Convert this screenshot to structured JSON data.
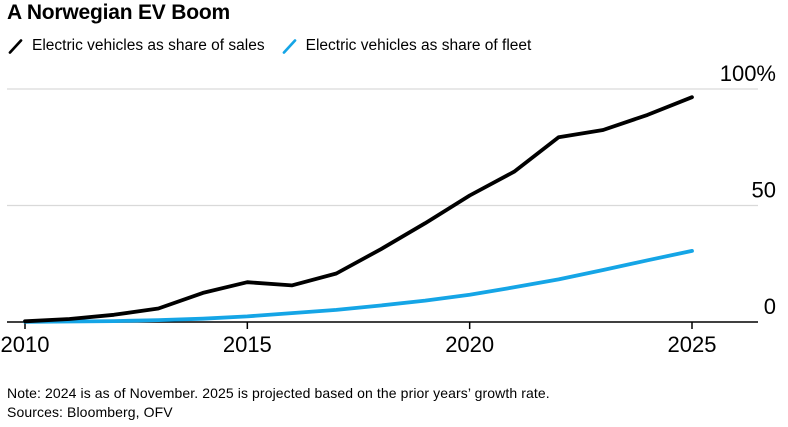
{
  "title": "A Norwegian EV Boom",
  "legend": [
    {
      "id": "sales",
      "label": "Electric vehicles as share of sales",
      "color": "#000000"
    },
    {
      "id": "fleet",
      "label": "Electric vehicles as share of fleet",
      "color": "#15a5e6"
    }
  ],
  "note": "Note: 2024 is as of November. 2025 is projected based on the prior years’ growth rate.",
  "sources": "Sources: Bloomberg, OFV",
  "colors": {
    "sales_line": "#000000",
    "fleet_line": "#15a5e6",
    "gridline": "#d9d9d9",
    "axis": "#000000",
    "background": "#ffffff"
  },
  "chart_data": {
    "type": "line",
    "title": "A Norwegian EV Boom",
    "x": [
      2010,
      2011,
      2012,
      2013,
      2014,
      2015,
      2016,
      2017,
      2018,
      2019,
      2020,
      2021,
      2022,
      2023,
      2024,
      2025
    ],
    "series": [
      {
        "id": "sales",
        "name": "Electric vehicles as share of sales",
        "color": "#000000",
        "values": [
          0.3,
          1.3,
          3.1,
          5.8,
          12.5,
          17.1,
          15.7,
          20.8,
          31.2,
          42.4,
          54.3,
          64.5,
          79.3,
          82.4,
          88.9,
          96.5
        ]
      },
      {
        "id": "fleet",
        "name": "Electric vehicles as share of fleet",
        "color": "#15a5e6",
        "values": [
          0.1,
          0.2,
          0.4,
          0.8,
          1.4,
          2.4,
          3.8,
          5.2,
          7.1,
          9.2,
          11.7,
          14.9,
          18.3,
          22.3,
          26.5,
          30.5
        ]
      }
    ],
    "xlabel": "",
    "ylabel": "",
    "unit": "%",
    "xlim": [
      2010,
      2025
    ],
    "ylim": [
      0,
      100
    ],
    "x_ticks": [
      2010,
      2015,
      2020,
      2025
    ],
    "y_ticks": [
      {
        "value": 0,
        "label": "0"
      },
      {
        "value": 50,
        "label": "50"
      },
      {
        "value": 100,
        "label": "100%"
      }
    ],
    "grid": "horizontal",
    "legend_position": "top-left"
  }
}
